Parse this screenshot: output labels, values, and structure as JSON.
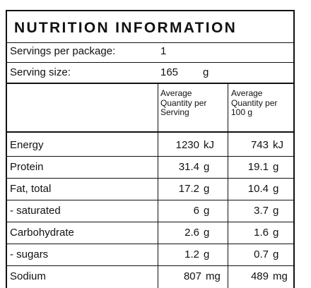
{
  "title": "NUTRITION INFORMATION",
  "servings_label": "Servings per package:",
  "servings_value": "1",
  "serving_size_label": "Serving size:",
  "serving_size_value": "165",
  "serving_size_unit": "g",
  "headers": {
    "per_serving": [
      "Average",
      "Quantity per",
      "Serving"
    ],
    "per_100g": [
      "Average",
      "Quantity per",
      "100 g"
    ]
  },
  "rows": [
    {
      "label": "Energy",
      "serving": "1230",
      "serving_unit": "kJ",
      "per100": "743",
      "per100_unit": "kJ"
    },
    {
      "label": "Protein",
      "serving": "31.4",
      "serving_unit": "g",
      "per100": "19.1",
      "per100_unit": "g"
    },
    {
      "label": "Fat, total",
      "serving": "17.2",
      "serving_unit": "g",
      "per100": "10.4",
      "per100_unit": "g"
    },
    {
      "label": "- saturated",
      "serving": "6",
      "serving_unit": "g",
      "per100": "3.7",
      "per100_unit": "g"
    },
    {
      "label": "Carbohydrate",
      "serving": "2.6",
      "serving_unit": "g",
      "per100": "1.6",
      "per100_unit": "g"
    },
    {
      "label": "- sugars",
      "serving": "1.2",
      "serving_unit": "g",
      "per100": "0.7",
      "per100_unit": "g"
    },
    {
      "label": "Sodium",
      "serving": "807",
      "serving_unit": "mg",
      "per100": "489",
      "per100_unit": "mg"
    }
  ]
}
